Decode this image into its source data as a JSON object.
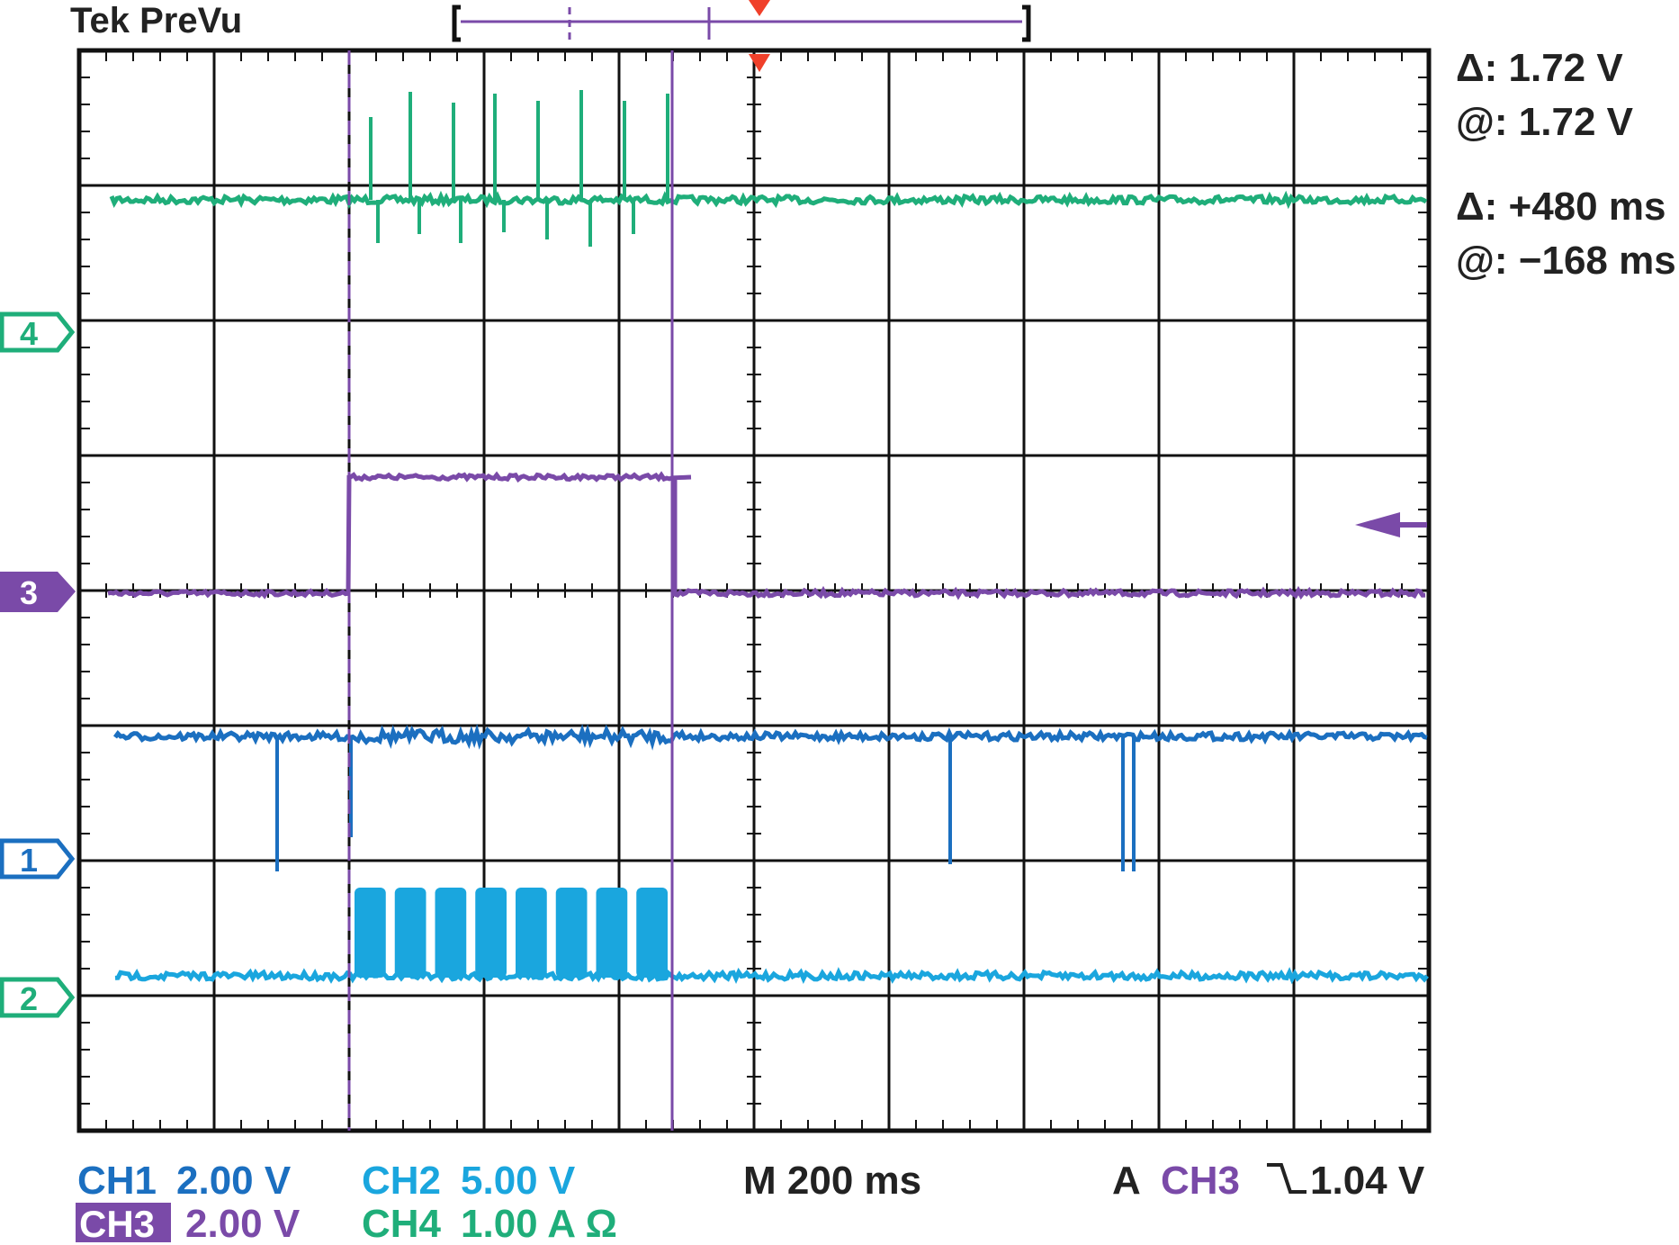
{
  "header": {
    "title": "Tek PreVu"
  },
  "cursor_readout": {
    "voltage_delta": "Δ: 1.72 V",
    "voltage_at": "@: 1.72 V",
    "time_delta": "Δ: +480 ms",
    "time_at": "@: −168 ms"
  },
  "channel_markers": {
    "ch4": "4",
    "ch3": "3",
    "ch1": "1",
    "ch2": "2"
  },
  "footer": {
    "ch1_name": "CH1",
    "ch1_scale": "2.00 V",
    "ch2_name": "CH2",
    "ch2_scale": "5.00 V",
    "ch3_name": "CH3",
    "ch3_scale": "2.00 V",
    "ch4_name": "CH4",
    "ch4_scale": "1.00 A Ω",
    "timebase": "M 200 ms",
    "trigger_mode": "A",
    "trigger_source": "CH3",
    "trigger_level": "1.04 V"
  },
  "colors": {
    "ch1": "#1b6fc0",
    "ch2": "#1aa6de",
    "ch3": "#7a4aa8",
    "ch4": "#1fae7a",
    "grid": "#111111",
    "trigger": "#f0402a"
  },
  "icons": {
    "trigger_marker": "trigger-position-icon",
    "trigger_level": "trigger-level-arrow-icon",
    "falling_edge": "falling-edge-icon"
  },
  "scope_settings": {
    "divisions_horizontal": 10,
    "divisions_vertical": 8,
    "time_per_div_ms": 200,
    "cursor_time_delta_ms": 480,
    "cursor_time_at_ms": -168,
    "pulse_bursts_ch4": 8,
    "burst_groups_ch2": 8
  }
}
